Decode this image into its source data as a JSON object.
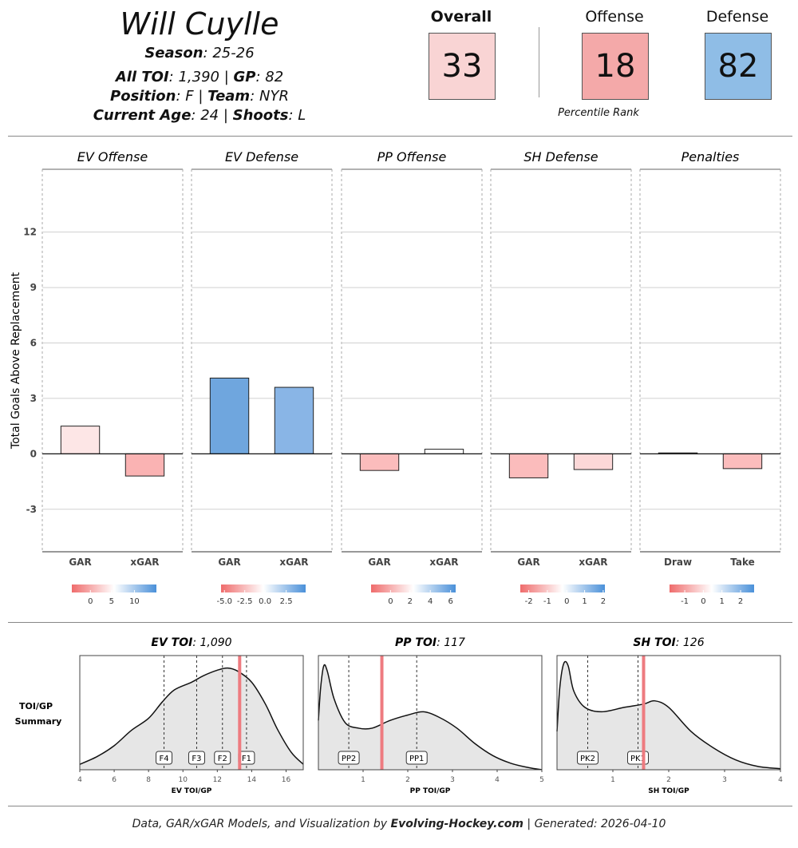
{
  "header": {
    "player_name": "Will Cuylle",
    "season_label": "Season",
    "season": "25-26",
    "toi_label": "All TOI",
    "toi": "1,390",
    "gp_label": "GP",
    "gp": "82",
    "position_label": "Position",
    "position": "F",
    "team_label": "Team",
    "team": "NYR",
    "age_label": "Current Age",
    "age": "24",
    "shoots_label": "Shoots",
    "shoots": "L"
  },
  "ranks": {
    "overall_label": "Overall",
    "overall": "33",
    "overall_color": "#f9d4d4",
    "offense_label": "Offense",
    "offense": "18",
    "offense_color": "#f4a9a9",
    "defense_label": "Defense",
    "defense": "82",
    "defense_color": "#8fbde6",
    "caption": "Percentile Rank"
  },
  "chart_data": [
    {
      "type": "bar",
      "ylabel": "Total Goals Above Replacement",
      "ylim": [
        -5.3,
        15.4
      ],
      "yticks": [
        -3,
        0,
        3,
        6,
        9,
        12
      ],
      "grid": true,
      "panels": [
        {
          "title": "EV Offense",
          "categories": [
            "GAR",
            "xGAR"
          ],
          "values": [
            1.5,
            -1.2
          ],
          "colors": [
            "#fde6e6",
            "#fab3b3"
          ],
          "scale": {
            "ticks": [
              "0",
              "5",
              "10"
            ],
            "fracs": [
              0.22,
              0.47,
              0.74
            ]
          }
        },
        {
          "title": "EV Defense",
          "categories": [
            "GAR",
            "xGAR"
          ],
          "values": [
            4.1,
            3.6
          ],
          "colors": [
            "#6fa6de",
            "#89b5e6"
          ],
          "scale": {
            "ticks": [
              "-5.0",
              "-2.5",
              "0.0",
              "2.5"
            ],
            "fracs": [
              0.04,
              0.28,
              0.52,
              0.77
            ]
          }
        },
        {
          "title": "PP Offense",
          "categories": [
            "GAR",
            "xGAR"
          ],
          "values": [
            -0.9,
            0.25
          ],
          "colors": [
            "#fbbcbc",
            "#ffffff"
          ],
          "scale": {
            "ticks": [
              "0",
              "2",
              "4",
              "6"
            ],
            "fracs": [
              0.23,
              0.46,
              0.7,
              0.94
            ]
          }
        },
        {
          "title": "SH Defense",
          "categories": [
            "GAR",
            "xGAR"
          ],
          "values": [
            -1.3,
            -0.85
          ],
          "colors": [
            "#fbbcbc",
            "#fcd8d8"
          ],
          "scale": {
            "ticks": [
              "-2",
              "-1",
              "0",
              "1",
              "2"
            ],
            "fracs": [
              0.1,
              0.32,
              0.55,
              0.76,
              0.98
            ]
          }
        },
        {
          "title": "Penalties",
          "categories": [
            "Draw",
            "Take"
          ],
          "values": [
            0.05,
            -0.8
          ],
          "colors": [
            "#ffffff",
            "#fbbcbc"
          ],
          "scale": {
            "ticks": [
              "-1",
              "0",
              "1",
              "2"
            ],
            "fracs": [
              0.18,
              0.4,
              0.62,
              0.84
            ]
          }
        }
      ]
    },
    {
      "type": "area",
      "summary_label": [
        "TOI/GP",
        "Summary"
      ],
      "panels": [
        {
          "title_label": "EV TOI",
          "title_value": "1,090",
          "xlabel": "EV TOI/GP",
          "xlim": [
            4,
            17
          ],
          "xticks": [
            4,
            6,
            8,
            10,
            12,
            14,
            16
          ],
          "density": [
            [
              4,
              0.05
            ],
            [
              5,
              0.12
            ],
            [
              6,
              0.22
            ],
            [
              7,
              0.36
            ],
            [
              8,
              0.47
            ],
            [
              8.8,
              0.62
            ],
            [
              9.5,
              0.73
            ],
            [
              10.5,
              0.8
            ],
            [
              11.2,
              0.86
            ],
            [
              12,
              0.91
            ],
            [
              12.6,
              0.93
            ],
            [
              13.2,
              0.9
            ],
            [
              14,
              0.8
            ],
            [
              14.8,
              0.6
            ],
            [
              15.5,
              0.37
            ],
            [
              16.3,
              0.16
            ],
            [
              17,
              0.05
            ]
          ],
          "player_value": 13.3,
          "markers": [
            {
              "label": "F4",
              "x": 8.9
            },
            {
              "label": "F3",
              "x": 10.8
            },
            {
              "label": "F2",
              "x": 12.3
            },
            {
              "label": "F1",
              "x": 13.7
            }
          ]
        },
        {
          "title_label": "PP TOI",
          "title_value": "117",
          "xlabel": "PP TOI/GP",
          "xlim": [
            0,
            5
          ],
          "xticks": [
            1,
            2,
            3,
            4,
            5
          ],
          "density": [
            [
              0,
              0.45
            ],
            [
              0.05,
              0.75
            ],
            [
              0.12,
              0.95
            ],
            [
              0.2,
              0.9
            ],
            [
              0.35,
              0.65
            ],
            [
              0.6,
              0.43
            ],
            [
              0.9,
              0.38
            ],
            [
              1.2,
              0.38
            ],
            [
              1.6,
              0.45
            ],
            [
              2.0,
              0.5
            ],
            [
              2.35,
              0.53
            ],
            [
              2.7,
              0.48
            ],
            [
              3.1,
              0.38
            ],
            [
              3.5,
              0.24
            ],
            [
              3.9,
              0.13
            ],
            [
              4.3,
              0.06
            ],
            [
              4.7,
              0.02
            ],
            [
              5,
              0.0
            ]
          ],
          "player_value": 1.42,
          "markers": [
            {
              "label": "PP2",
              "x": 0.68
            },
            {
              "label": "PP1",
              "x": 2.2
            }
          ]
        },
        {
          "title_label": "SH TOI",
          "title_value": "126",
          "xlabel": "SH TOI/GP",
          "xlim": [
            0,
            4
          ],
          "xticks": [
            1,
            2,
            3,
            4
          ],
          "density": [
            [
              0,
              0.35
            ],
            [
              0.05,
              0.75
            ],
            [
              0.12,
              0.97
            ],
            [
              0.2,
              0.95
            ],
            [
              0.3,
              0.72
            ],
            [
              0.5,
              0.57
            ],
            [
              0.8,
              0.53
            ],
            [
              1.2,
              0.57
            ],
            [
              1.55,
              0.6
            ],
            [
              1.75,
              0.63
            ],
            [
              2.0,
              0.57
            ],
            [
              2.4,
              0.35
            ],
            [
              2.8,
              0.2
            ],
            [
              3.2,
              0.09
            ],
            [
              3.6,
              0.03
            ],
            [
              4,
              0.01
            ]
          ],
          "player_value": 1.55,
          "markers": [
            {
              "label": "PK2",
              "x": 0.55
            },
            {
              "label": "PK1",
              "x": 1.45
            }
          ]
        }
      ]
    }
  ],
  "footer": {
    "prefix": "Data, GAR/xGAR Models, and Visualization by ",
    "brand": "Evolving-Hockey.com",
    "suffix": " | Generated: 2026-04-10"
  }
}
